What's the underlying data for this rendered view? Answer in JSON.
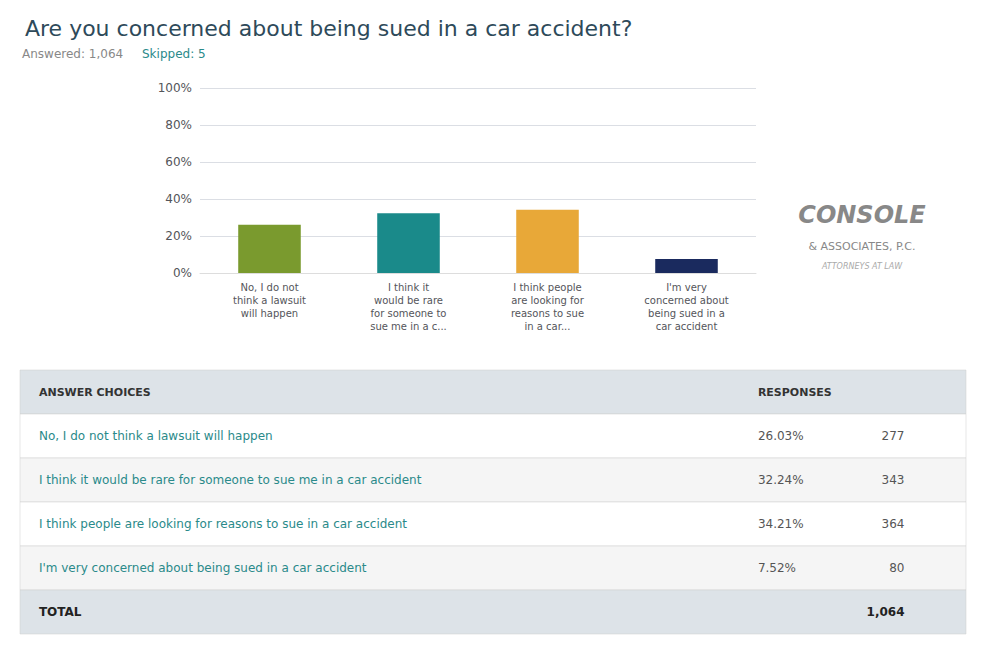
{
  "chart_data": {
    "type": "bar",
    "title": "Are you concerned about being sued in a car accident?",
    "subtitle": [
      "Answered: 1,064",
      "Skipped: 5"
    ],
    "categories": [
      "No, I do not\nthink a lawsuit\nwill happen",
      "I think it\nwould be rare\nfor someone to\nsue me in a c...",
      "I think people\nare looking for\nreasons to sue\nin a car...",
      "I'm very\nconcerned about\nbeing sued in a\ncar accident"
    ],
    "values": [
      26.03,
      32.24,
      34.21,
      7.52
    ],
    "colors": [
      "#7a9a2e",
      "#1a8a8a",
      "#e8a838",
      "#1a2a5e"
    ],
    "ylim": [
      0,
      100
    ],
    "yticks": [
      {
        "value": 0,
        "label": "0%"
      },
      {
        "value": 20,
        "label": "20%"
      },
      {
        "value": 40,
        "label": "40%"
      },
      {
        "value": 60,
        "label": "60%"
      },
      {
        "value": 80,
        "label": "80%"
      },
      {
        "value": 100,
        "label": "100%"
      }
    ],
    "grid": true,
    "annotations": [
      "CONSOLE",
      "& ASSOCIATES, P.C.",
      "ATTORNEYS AT LAW"
    ],
    "table": {
      "columns": [
        "ANSWER CHOICES",
        "RESPONSES"
      ],
      "rows": [
        {
          "label": "No, I do not think a lawsuit will happen",
          "pct": "26.03%",
          "count": "277"
        },
        {
          "label": "I think it would be rare for someone to sue me in a car accident",
          "pct": "32.24%",
          "count": "343"
        },
        {
          "label": "I think people are looking for reasons to sue in a car accident",
          "pct": "34.21%",
          "count": "364"
        },
        {
          "label": "I'm very concerned about being sued in a car accident",
          "pct": "7.52%",
          "count": "80"
        }
      ],
      "total": {
        "label": "TOTAL",
        "count": "1,064"
      }
    }
  }
}
